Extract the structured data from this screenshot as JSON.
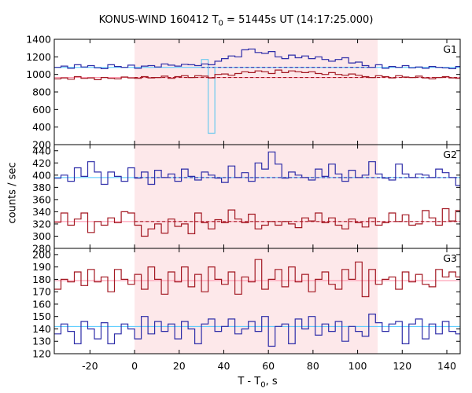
{
  "chart_data": {
    "type": "line",
    "title": {
      "prefix": "KONUS-WIND 160412 T",
      "sub": "0",
      "suffix": " = 51445s UT (14:17:25.000)"
    },
    "xlabel": {
      "prefix": "T - T",
      "sub": "0",
      "suffix": ", s"
    },
    "ylabel": "counts / sec",
    "xlim": [
      -36,
      146
    ],
    "x_ticks": [
      -20,
      0,
      20,
      40,
      60,
      80,
      100,
      120,
      140
    ],
    "highlight_interval": [
      0,
      109
    ],
    "colors": {
      "blue": "#2d2ca8",
      "red": "#a31822",
      "highlight": "#fde8ea",
      "fit_blue": "#4cc8ff",
      "fit_red": "#ff8ca6",
      "spike": "#6ec9ee"
    },
    "panels": [
      {
        "label": "G1",
        "ylim": [
          200,
          1400
        ],
        "y_ticks": [
          200,
          400,
          600,
          800,
          1000,
          1200,
          1400
        ],
        "series": [
          {
            "color": "blue",
            "bin_width": 3,
            "values": [
              1080,
              1095,
              1070,
              1110,
              1085,
              1100,
              1075,
              1065,
              1110,
              1090,
              1080,
              1105,
              1070,
              1095,
              1100,
              1085,
              1120,
              1105,
              1095,
              1115,
              1110,
              1100,
              1120,
              1110,
              1150,
              1180,
              1210,
              1200,
              1280,
              1290,
              1250,
              1240,
              1260,
              1200,
              1180,
              1220,
              1190,
              1210,
              1180,
              1200,
              1170,
              1150,
              1170,
              1190,
              1130,
              1140,
              1100,
              1080,
              1110,
              1070,
              1090,
              1080,
              1100,
              1075,
              1085,
              1070,
              1090,
              1080,
              1075,
              1065,
              1090
            ]
          },
          {
            "color": "red",
            "bin_width": 3,
            "values": [
              950,
              960,
              945,
              975,
              955,
              960,
              940,
              965,
              955,
              950,
              970,
              960,
              955,
              975,
              960,
              965,
              980,
              955,
              975,
              985,
              965,
              985,
              980,
              960,
              1000,
              1005,
              990,
              1010,
              1030,
              1020,
              1040,
              1030,
              1010,
              1050,
              1020,
              1040,
              1030,
              1020,
              1030,
              1010,
              1000,
              1020,
              1000,
              990,
              1005,
              990,
              975,
              965,
              985,
              975,
              960,
              985,
              970,
              965,
              980,
              960,
              950,
              965,
              975,
              960,
              955
            ]
          }
        ],
        "spike": {
          "x_start": 30,
          "x_end": 36,
          "top": 1170,
          "bottom": 330,
          "base": 1090
        },
        "fits": [
          {
            "color": "blue",
            "value": 1080,
            "style": "solid",
            "x_range": [
              -36,
              146
            ]
          },
          {
            "color": "blue",
            "value": 1080,
            "style": "dashed",
            "x_range": [
              30,
              105
            ]
          },
          {
            "color": "red",
            "value": 965,
            "style": "solid",
            "x_range": [
              -36,
              146
            ]
          },
          {
            "color": "red",
            "value": 965,
            "style": "dashed",
            "x_range": [
              0,
              146
            ]
          }
        ]
      },
      {
        "label": "G2",
        "ylim": [
          280,
          450
        ],
        "y_ticks": [
          280,
          300,
          320,
          340,
          360,
          380,
          400,
          420,
          440
        ],
        "series": [
          {
            "color": "blue",
            "bin_width": 3,
            "values": [
              395,
              400,
              390,
              412,
              398,
              422,
              405,
              385,
              405,
              398,
              390,
              412,
              395,
              405,
              385,
              408,
              396,
              402,
              390,
              410,
              398,
              392,
              405,
              400,
              395,
              388,
              415,
              396,
              404,
              390,
              420,
              410,
              438,
              418,
              395,
              405,
              400,
              396,
              392,
              410,
              398,
              418,
              402,
              390,
              408,
              396,
              400,
              422,
              402,
              395,
              392,
              418,
              402,
              396,
              402,
              400,
              396,
              410,
              404,
              396,
              383
            ]
          },
          {
            "color": "red",
            "bin_width": 3,
            "values": [
              323,
              338,
              318,
              328,
              338,
              306,
              324,
              318,
              330,
              322,
              340,
              338,
              318,
              300,
              312,
              320,
              305,
              328,
              316,
              320,
              304,
              338,
              322,
              312,
              327,
              322,
              343,
              328,
              322,
              336,
              312,
              318,
              324,
              318,
              324,
              320,
              314,
              330,
              325,
              338,
              322,
              330,
              318,
              312,
              328,
              322,
              315,
              330,
              318,
              322,
              338,
              324,
              335,
              318,
              320,
              342,
              330,
              318,
              345,
              325,
              342
            ]
          }
        ],
        "fits": [
          {
            "color": "blue",
            "value": 396,
            "style": "solid",
            "x_range": [
              -36,
              146
            ]
          },
          {
            "color": "blue",
            "value": 396,
            "style": "dashed",
            "x_range": [
              0,
              146
            ]
          },
          {
            "color": "red",
            "value": 324,
            "style": "solid",
            "x_range": [
              -36,
              146
            ]
          },
          {
            "color": "red",
            "value": 324,
            "style": "dashed",
            "x_range": [
              0,
              146
            ]
          }
        ]
      },
      {
        "label": "G3",
        "ylim": [
          120,
          205
        ],
        "y_ticks": [
          120,
          130,
          140,
          150,
          160,
          170,
          180,
          190,
          200
        ],
        "series": [
          {
            "color": "blue",
            "bin_width": 3,
            "values": [
              136,
              144,
              138,
              128,
              146,
              140,
              132,
              145,
              128,
              136,
              144,
              140,
              132,
              150,
              136,
              146,
              138,
              144,
              132,
              146,
              140,
              128,
              144,
              148,
              138,
              142,
              148,
              136,
              140,
              146,
              138,
              150,
              126,
              142,
              144,
              128,
              148,
              140,
              150,
              135,
              144,
              138,
              146,
              130,
              142,
              138,
              134,
              152,
              145,
              138,
              144,
              146,
              128,
              144,
              148,
              132,
              144,
              136,
              146,
              138,
              136
            ]
          },
          {
            "color": "red",
            "bin_width": 3,
            "values": [
              172,
              180,
              178,
              186,
              175,
              188,
              178,
              182,
              170,
              188,
              180,
              176,
              184,
              172,
              190,
              180,
              168,
              186,
              178,
              190,
              174,
              184,
              170,
              190,
              180,
              176,
              186,
              168,
              182,
              178,
              196,
              172,
              180,
              188,
              174,
              190,
              178,
              184,
              170,
              180,
              186,
              176,
              172,
              188,
              180,
              194,
              166,
              188,
              176,
              180,
              182,
              172,
              186,
              178,
              184,
              176,
              174,
              188,
              182,
              186,
              182
            ]
          }
        ],
        "fits": [
          {
            "color": "blue",
            "value": 142,
            "style": "solid",
            "x_range": [
              -36,
              146
            ]
          },
          {
            "color": "red",
            "value": 179,
            "style": "solid",
            "x_range": [
              -36,
              146
            ]
          }
        ]
      }
    ]
  }
}
